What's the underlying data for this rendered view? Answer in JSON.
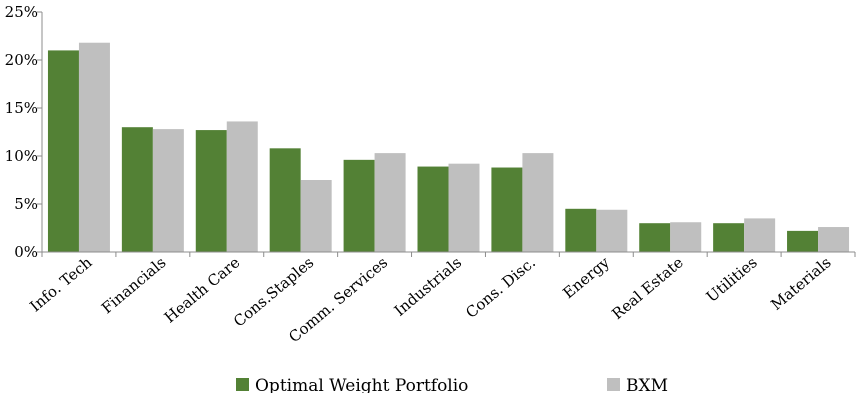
{
  "chart_data": {
    "type": "bar",
    "title": "",
    "xlabel": "",
    "ylabel": "",
    "ylim": [
      0,
      25
    ],
    "yticks": [
      "0%",
      "5%",
      "10%",
      "15%",
      "20%",
      "25%"
    ],
    "ytick_values": [
      0,
      5,
      10,
      15,
      20,
      25
    ],
    "grid": false,
    "legend_position": "bottom",
    "categories": [
      "Info. Tech",
      "Financials",
      "Health Care",
      "Cons.Staples",
      "Comm. Services",
      "Industrials",
      "Cons. Disc.",
      "Energy",
      "Real Estate",
      "Utilities",
      "Materials"
    ],
    "series": [
      {
        "name": "Optimal Weight Portfolio",
        "color": "#538135",
        "values": [
          21.0,
          13.0,
          12.7,
          10.8,
          9.6,
          8.9,
          8.8,
          4.5,
          3.0,
          3.0,
          2.2
        ]
      },
      {
        "name": "BXM",
        "color": "#BFBFBF",
        "values": [
          21.8,
          12.8,
          13.6,
          7.5,
          10.3,
          9.2,
          10.3,
          4.4,
          3.1,
          3.5,
          2.6
        ]
      }
    ]
  }
}
